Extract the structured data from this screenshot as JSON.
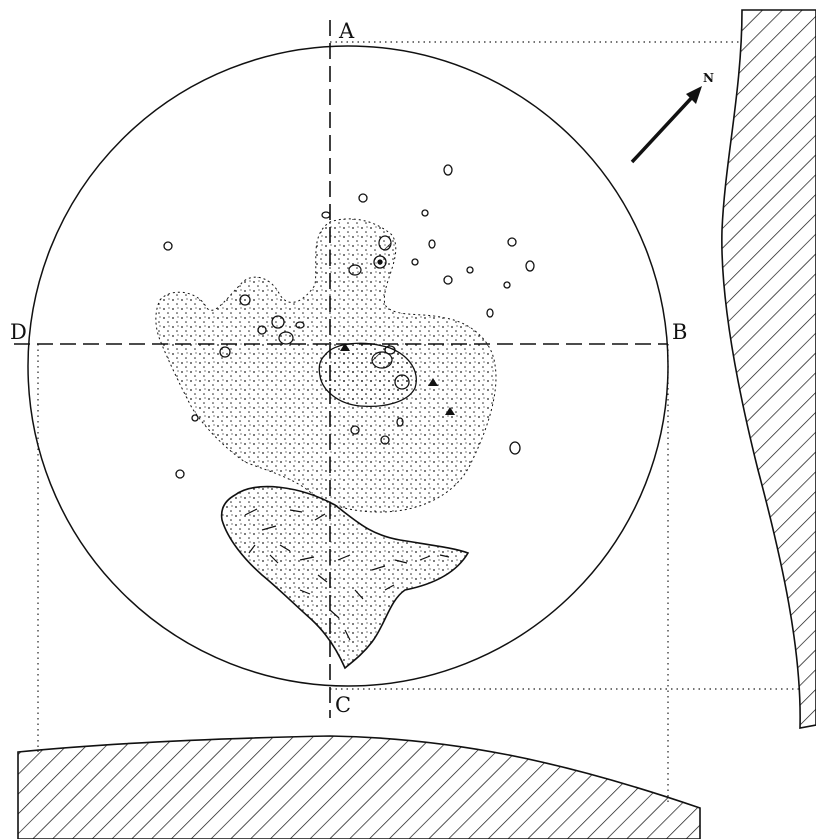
{
  "labels": {
    "top": "A",
    "right": "B",
    "bottom": "C",
    "left": "D",
    "north": "N"
  },
  "colors": {
    "ink": "#111111",
    "paper": "#ffffff"
  }
}
